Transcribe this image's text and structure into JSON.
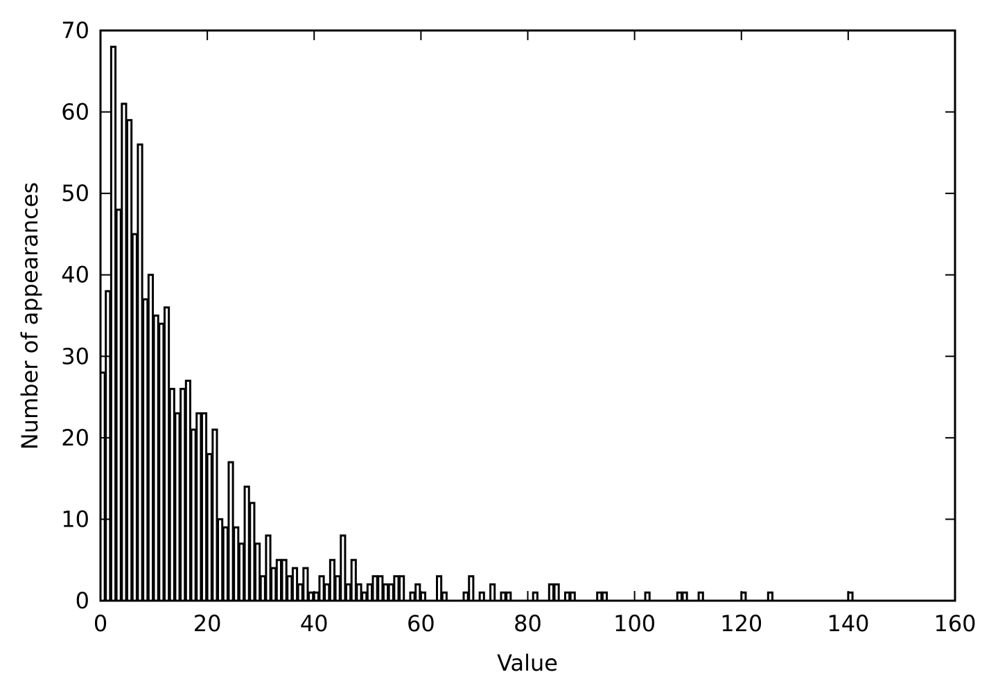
{
  "chart_data": {
    "type": "bar",
    "xlabel": "Value",
    "ylabel": "Number of appearances",
    "x": [
      0,
      1,
      2,
      3,
      4,
      5,
      6,
      7,
      8,
      9,
      10,
      11,
      12,
      13,
      14,
      15,
      16,
      17,
      18,
      19,
      20,
      21,
      22,
      23,
      24,
      25,
      26,
      27,
      28,
      29,
      30,
      31,
      32,
      33,
      34,
      35,
      36,
      37,
      38,
      39,
      40,
      41,
      42,
      43,
      44,
      45,
      46,
      47,
      48,
      49,
      50,
      51,
      52,
      53,
      54,
      55,
      56,
      57,
      58,
      59,
      60,
      61,
      62,
      63,
      64,
      65,
      66,
      67,
      68,
      69,
      70,
      71,
      72,
      73,
      74,
      75,
      76,
      77,
      78,
      79,
      80,
      81,
      82,
      83,
      84,
      85,
      86,
      87,
      88,
      89,
      90,
      91,
      92,
      93,
      94,
      95,
      96,
      97,
      98,
      99,
      100,
      101,
      102,
      103,
      104,
      105,
      106,
      107,
      108,
      109,
      110,
      111,
      112,
      113,
      114,
      115,
      116,
      117,
      118,
      119,
      120,
      121,
      122,
      123,
      124,
      125,
      126,
      127,
      128,
      129,
      130,
      131,
      132,
      133,
      134,
      135,
      136,
      137,
      138,
      139,
      140
    ],
    "values": [
      28,
      38,
      68,
      48,
      61,
      59,
      45,
      56,
      37,
      40,
      35,
      34,
      36,
      26,
      23,
      26,
      27,
      21,
      23,
      23,
      18,
      21,
      10,
      9,
      17,
      9,
      7,
      14,
      12,
      7,
      3,
      8,
      4,
      5,
      5,
      3,
      4,
      2,
      4,
      1,
      1,
      3,
      2,
      5,
      3,
      8,
      2,
      5,
      2,
      1,
      2,
      3,
      3,
      2,
      2,
      3,
      3,
      0,
      1,
      2,
      1,
      0,
      0,
      3,
      1,
      0,
      0,
      0,
      1,
      3,
      0,
      1,
      0,
      2,
      0,
      1,
      1,
      0,
      0,
      0,
      0,
      1,
      0,
      0,
      2,
      2,
      0,
      1,
      1,
      0,
      0,
      0,
      0,
      1,
      1,
      0,
      0,
      0,
      0,
      0,
      0,
      0,
      1,
      0,
      0,
      0,
      0,
      0,
      1,
      1,
      0,
      0,
      1,
      0,
      0,
      0,
      0,
      0,
      0,
      0,
      1,
      0,
      0,
      0,
      0,
      1,
      0,
      0,
      0,
      0,
      0,
      0,
      0,
      0,
      0,
      0,
      0,
      0,
      0,
      0,
      1
    ],
    "color": "#ffffff",
    "edgecolor": "#000000",
    "xlim": [
      0,
      160
    ],
    "xticks": [
      0,
      20,
      40,
      60,
      80,
      100,
      120,
      140,
      160
    ],
    "ylim": [
      0,
      70
    ],
    "yticks": [
      0,
      10,
      20,
      30,
      40,
      50,
      60,
      70
    ]
  }
}
